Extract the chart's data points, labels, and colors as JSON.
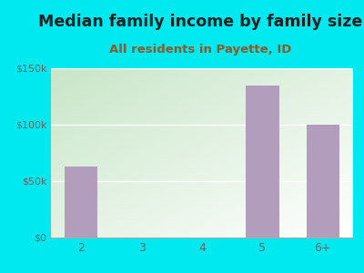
{
  "title": "Median family income by family size",
  "subtitle": "All residents in Payette, ID",
  "categories": [
    "2",
    "3",
    "4",
    "5",
    "6+"
  ],
  "values": [
    63000,
    0,
    0,
    135000,
    100000
  ],
  "bar_color": "#b39dbd",
  "background_outer": "#00e8f0",
  "title_color": "#222222",
  "subtitle_color": "#8b5a2b",
  "ylabel_ticks": [
    "$0",
    "$50k",
    "$100k",
    "$150k"
  ],
  "ylabel_values": [
    0,
    50000,
    100000,
    150000
  ],
  "ylim": [
    0,
    150000
  ],
  "title_fontsize": 12.5,
  "subtitle_fontsize": 9.5
}
